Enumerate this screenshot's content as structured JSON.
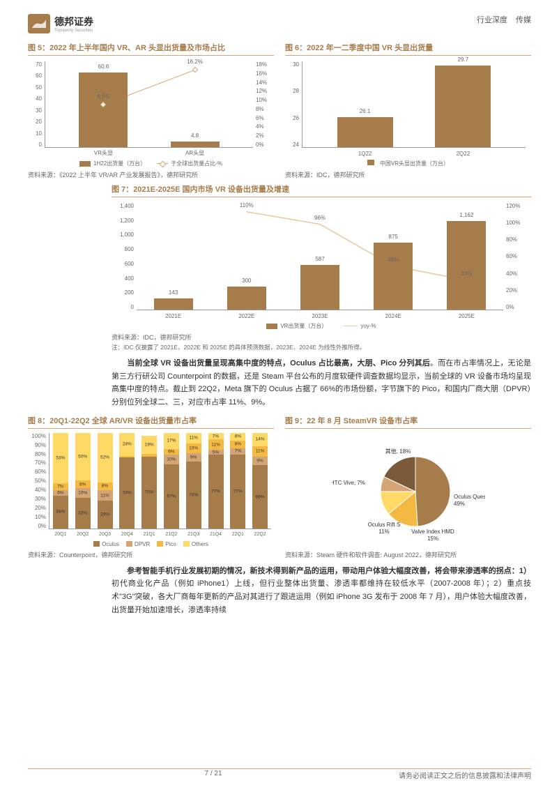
{
  "header": {
    "company": "德邦证券",
    "company_en": "Topsperity Securities",
    "right_a": "行业深度",
    "right_b": "传媒"
  },
  "footer": {
    "page": "7 / 21",
    "disclaimer": "请务必阅读正文之后的信息披露和法律声明"
  },
  "fig5": {
    "title": "图 5：2022 年上半年国内 VR、AR 头显出货量及市场占比",
    "type": "bar+line",
    "categories": [
      "VR头显",
      "AR头显"
    ],
    "bars": [
      60.6,
      4.8
    ],
    "line": [
      8.9,
      16.2
    ],
    "bar_labels": [
      "60.6",
      "4.8"
    ],
    "line_labels": [
      "8.9%",
      "16.2%"
    ],
    "y_left": [
      "70",
      "60",
      "50",
      "40",
      "30",
      "20",
      "10",
      "0"
    ],
    "y_right": [
      "18%",
      "16%",
      "14%",
      "12%",
      "10%",
      "8%",
      "6%",
      "4%",
      "2%",
      "0%"
    ],
    "bar_color": "#a67c4a",
    "line_color": "#d4a574",
    "legend": [
      "1H22出货量（万台）",
      "于全球出货量占比-%"
    ],
    "source": "资料来源：《2022 上半年 VR/AR 产业发展报告》，德邦研究所"
  },
  "fig6": {
    "title": "图 6：2022 年一二季度中国 VR 头显出货量",
    "type": "bar",
    "categories": [
      "1Q22",
      "2Q22"
    ],
    "values": [
      26.1,
      29.7
    ],
    "labels": [
      "26.1",
      "29.7"
    ],
    "y_left": [
      "30",
      "28",
      "26",
      "24"
    ],
    "bar_color": "#a67c4a",
    "legend": "中国VR头显出货量（万台）",
    "source": "资料来源：IDC，德邦研究所"
  },
  "fig7": {
    "title": "图 7：2021E-2025E 国内市场 VR 设备出货量及增速",
    "type": "bar+line",
    "categories": [
      "2021E",
      "2022E",
      "2023E",
      "2024E",
      "2025E"
    ],
    "bars": [
      143,
      300,
      587,
      875,
      1162
    ],
    "line": [
      null,
      110,
      96,
      49,
      33
    ],
    "bar_labels": [
      "143",
      "300",
      "587",
      "875",
      "1,162"
    ],
    "line_labels": [
      "",
      "110%",
      "96%",
      "49%",
      "33%"
    ],
    "y_left": [
      "1,400",
      "1,200",
      "1,000",
      "800",
      "600",
      "400",
      "200",
      "0"
    ],
    "y_right": [
      "120%",
      "100%",
      "80%",
      "60%",
      "40%",
      "20%",
      "0%"
    ],
    "bar_color": "#a67c4a",
    "line_color": "#e8c89a",
    "legend": [
      "VR出货量（万台）",
      "yoy-%"
    ],
    "source": "资料来源：IDC，德邦研究所",
    "note": "注：IDC 仅披露了 2021E、2022E 和 2025E 的具体预测数据，2023E、2024E 为线性外推所得。"
  },
  "para1": "当前全球 VR 设备出货量呈现高集中度的特点，Oculus 占比最高，大朋、Pico 分列其后。而在市占率情况上，无论是第三方行研公司 Counterpoint 的数据，还是 Steam 平台公布的月度软硬件调查数据均显示，当前全球的 VR 设备市场均呈现高集中度的特点。截止到 22Q2，Meta 旗下的 Oculus 占据了 66%的市场份额，字节旗下的 Pico，和国内厂商大朋（DPVR）分别位列全球二、三，对应市占率 11%、9%。",
  "para1_bold_end": 45,
  "fig8": {
    "title": "图 8：20Q1-22Q2 全球 AR/VR 设备出货量市占率",
    "type": "stacked-bar",
    "categories": [
      "20Q1",
      "20Q2",
      "20Q3",
      "20Q4",
      "21Q1",
      "21Q2",
      "21Q3",
      "21Q4",
      "22Q1",
      "22Q2"
    ],
    "series": [
      "Oculus",
      "DPVR",
      "Pico",
      "Others"
    ],
    "colors": {
      "Oculus": "#a67c4a",
      "DPVR": "#d4a574",
      "Pico": "#f4b942",
      "Others": "#ffd966"
    },
    "data": [
      [
        34,
        6,
        7,
        53
      ],
      [
        32,
        10,
        8,
        50
      ],
      [
        29,
        11,
        8,
        52
      ],
      [
        74,
        0,
        2,
        24
      ],
      [
        75,
        0,
        3,
        19
      ],
      [
        67,
        10,
        6,
        17
      ],
      [
        70,
        9,
        10,
        11
      ],
      [
        77,
        5,
        11,
        7
      ],
      [
        77,
        7,
        8,
        8
      ],
      [
        66,
        9,
        11,
        14
      ]
    ],
    "y_left": [
      "100%",
      "90%",
      "80%",
      "70%",
      "60%",
      "50%",
      "40%",
      "30%",
      "20%",
      "10%",
      "0%"
    ],
    "source": "资料来源：Counterpoint，德邦研究所"
  },
  "fig9": {
    "title": "图 9：22 年 8 月 SteamVR 设备市占率",
    "type": "pie",
    "slices": [
      {
        "name": "Oculus Quest 2",
        "value": 49,
        "label": "Oculus Quest 2, 49%",
        "color": "#a67c4a"
      },
      {
        "name": "Valve Index HMD",
        "value": 15,
        "label": "Valve Index HMD, 15%",
        "color": "#f4b942"
      },
      {
        "name": "Oculus Rift S",
        "value": 11,
        "label": "Oculus Rift S, 11%",
        "color": "#ffd966"
      },
      {
        "name": "HTC Vive",
        "value": 7,
        "label": "HTC Vive, 7%",
        "color": "#d4a574"
      },
      {
        "name": "其他",
        "value": 18,
        "label": "其他, 18%",
        "color": "#7a5a3a"
      }
    ],
    "source": "资料来源：Steam 硬件和软件调查: August 2022，德邦研究所"
  },
  "para2": "参考智能手机行业发展初期的情况，新技术得到新产品的运用，带动用户体验大幅度改善，将会带来渗透率的拐点：1）初代商业化产品（例如 iPhone1）上线，但行业整体出货量、渗透率都维持在较低水平（2007-2008 年）；2）重点技术\"3G\"突破，各大厂商每年更新的产品对其进行了跟进运用（例如 iPhone 3G 发布于 2008 年 7 月），用户体验大幅度改善，出货量开始加速增长，渗透率持续"
}
